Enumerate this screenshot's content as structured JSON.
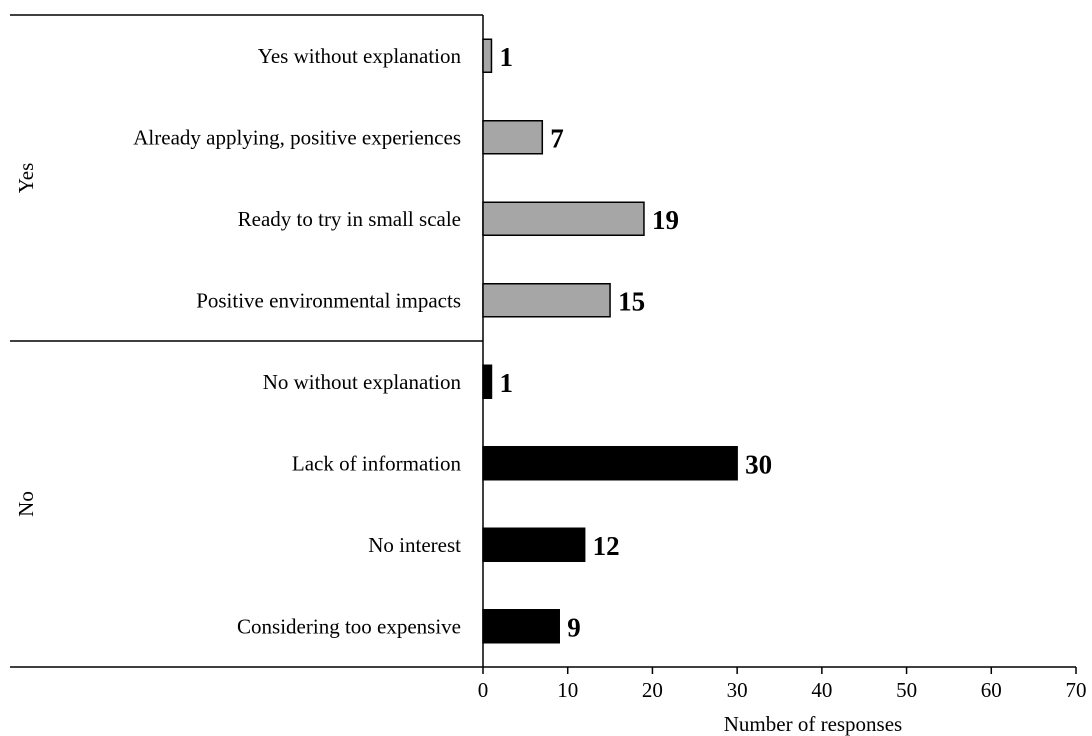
{
  "chart_data": {
    "type": "bar",
    "orientation": "horizontal",
    "title": "",
    "xlabel": "Number of responses",
    "ylabel": "",
    "xlim": [
      0,
      70
    ],
    "xticks": [
      0,
      10,
      20,
      30,
      40,
      50,
      60,
      70
    ],
    "grid": false,
    "legend": "none",
    "groups": [
      {
        "name": "Yes",
        "color": "#a6a6a6",
        "categories": [
          "Yes without explanation",
          "Already applying, positive experiences",
          "Ready to try in small scale",
          "Positive environmental impacts"
        ],
        "values": [
          1,
          7,
          19,
          15
        ]
      },
      {
        "name": "No",
        "color": "#000000",
        "categories": [
          "No without explanation",
          "Lack of information",
          "No interest",
          "Considering too expensive"
        ],
        "values": [
          1,
          30,
          12,
          9
        ]
      }
    ]
  }
}
